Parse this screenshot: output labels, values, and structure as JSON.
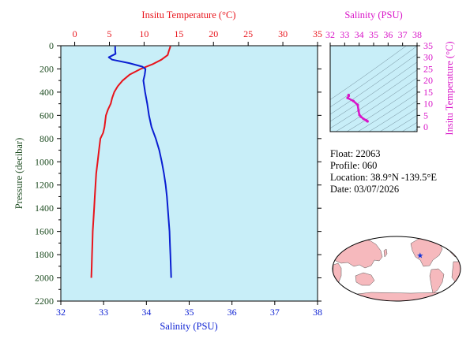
{
  "colors": {
    "temperature": "#e8131b",
    "salinity": "#0a1ed2",
    "pressure_axis": "#1f4d22",
    "ts_axis": "#d915c8",
    "plot_bg": "#c8eef8",
    "land": "#f6b9bd",
    "ocean": "#ffffff",
    "float_marker": "#1536d6"
  },
  "info": {
    "float": "Float:  22063",
    "profile": "Profile:  060",
    "location": "Location:  38.9°N  -139.5°E",
    "date": "Date:  03/07/2026"
  },
  "float_location": {
    "lat": 38.9,
    "lon": -139.5
  },
  "chart_data": [
    {
      "type": "line",
      "title": "",
      "ylabel": "Pressure (decibar)",
      "ylim": [
        2200,
        0
      ],
      "yticks": [
        0,
        200,
        400,
        600,
        800,
        1000,
        1200,
        1400,
        1600,
        1800,
        2000,
        2200
      ],
      "top_axis": {
        "label": "Insitu Temperature (°C)",
        "range": [
          -2,
          35
        ],
        "ticks": [
          0,
          5,
          10,
          15,
          20,
          25,
          30,
          35
        ]
      },
      "bottom_axis": {
        "label": "Salinity (PSU)",
        "range": [
          32,
          38
        ],
        "ticks": [
          32,
          33,
          34,
          35,
          36,
          37,
          38
        ]
      },
      "series": [
        {
          "axis": "top",
          "pressure": [
            5,
            40,
            80,
            120,
            160,
            200,
            250,
            300,
            350,
            400,
            450,
            500,
            550,
            600,
            650,
            700,
            750,
            800,
            900,
            1000,
            1100,
            1200,
            1300,
            1400,
            1500,
            1600,
            1700,
            1800,
            1900,
            2000
          ],
          "values": [
            13.8,
            13.6,
            13.4,
            12.5,
            11.2,
            9.5,
            7.9,
            6.9,
            6.2,
            5.7,
            5.4,
            5.2,
            4.8,
            4.5,
            4.4,
            4.3,
            4.1,
            3.7,
            3.5,
            3.3,
            3.1,
            3.0,
            2.9,
            2.8,
            2.7,
            2.6,
            2.55,
            2.5,
            2.45,
            2.4
          ]
        },
        {
          "axis": "bottom",
          "pressure": [
            5,
            40,
            70,
            100,
            120,
            150,
            180,
            200,
            250,
            300,
            350,
            400,
            500,
            600,
            700,
            800,
            900,
            1000,
            1100,
            1200,
            1300,
            1400,
            1500,
            1600,
            1700,
            1800,
            1900,
            2000
          ],
          "values": [
            33.27,
            33.27,
            33.28,
            33.12,
            33.2,
            33.6,
            33.9,
            33.98,
            33.96,
            33.93,
            33.95,
            33.97,
            34.02,
            34.06,
            34.12,
            34.22,
            34.3,
            34.36,
            34.41,
            34.45,
            34.48,
            34.5,
            34.52,
            34.54,
            34.55,
            34.56,
            34.57,
            34.58
          ]
        }
      ]
    },
    {
      "type": "line",
      "title": "",
      "top_axis": {
        "label": "Salinity (PSU)",
        "range": [
          32,
          38
        ],
        "ticks": [
          32,
          33,
          34,
          35,
          36,
          37,
          38
        ]
      },
      "right_axis": {
        "label": "Insitu Temperature (°C)",
        "range": [
          -2,
          35
        ],
        "ticks": [
          0,
          5,
          10,
          15,
          20,
          25,
          30,
          35
        ]
      },
      "series": [
        {
          "x": [
            33.27,
            33.28,
            33.2,
            33.6,
            33.9,
            33.96,
            34.02,
            34.12,
            34.3,
            34.45,
            34.52,
            34.56,
            34.58
          ],
          "y": [
            13.8,
            13.4,
            12.5,
            11.2,
            9.5,
            7.0,
            5.2,
            4.4,
            3.5,
            3.0,
            2.7,
            2.55,
            2.4
          ]
        }
      ]
    }
  ]
}
